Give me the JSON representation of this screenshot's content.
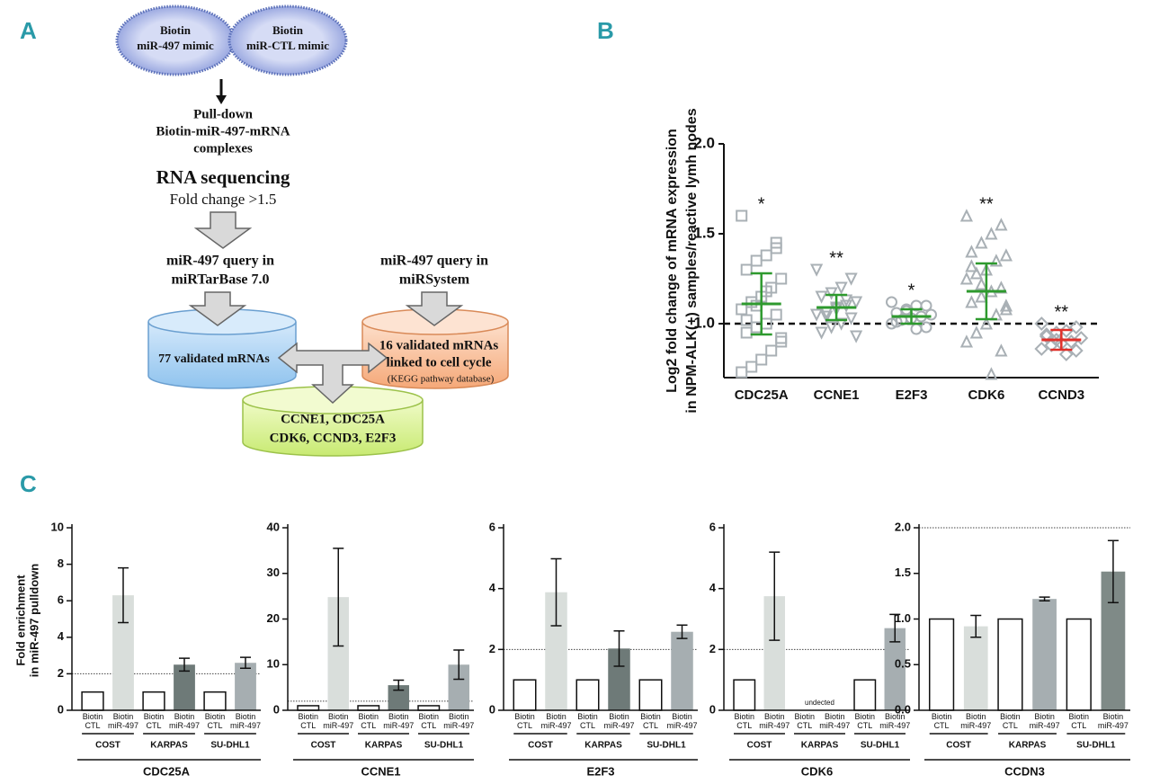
{
  "panel_labels": [
    "A",
    "B",
    "C"
  ],
  "diagram": {
    "mimics": [
      [
        "Biotin",
        "miR-497 mimic"
      ],
      [
        "Biotin",
        "miR-CTL mimic"
      ]
    ],
    "pulldown": [
      "Pull-down",
      "Biotin-miR-497-mRNA",
      "complexes"
    ],
    "sequencing": {
      "title": "RNA sequencing",
      "criterion": "Fold change >1.5"
    },
    "queries": [
      [
        "miR-497 query in",
        "miRTarBase  7.0"
      ],
      [
        "miR-497 query in",
        "miRSystem"
      ]
    ],
    "databases": [
      {
        "lines": [
          "77 validated mRNAs"
        ]
      },
      {
        "lines": [
          "16 validated mRNAs",
          "linked to cell cycle"
        ],
        "note": "(KEGG pathway database)"
      }
    ],
    "result": [
      "CCNE1, CDC25A",
      "CDK6,  CCND3, E2F3"
    ]
  },
  "chart_data": [
    {
      "type": "dot",
      "y_title": [
        "Log2 fold change of mRNA expression",
        "in NPM-ALK(+) samples/reactive lymh nodes"
      ],
      "categories": [
        "CDC25A",
        "CCNE1",
        "E2F3",
        "CDK6",
        "CCND3"
      ],
      "ylim": [
        0.7,
        2.0
      ],
      "yticks": [
        {
          "value": 1,
          "label": "1.0"
        },
        1.5,
        {
          "value": 2,
          "label": "2.0"
        }
      ],
      "ref_line": 1,
      "point_color": "#a9b0b5",
      "groups": [
        {
          "marker": "square",
          "color": "#2e9a2e",
          "mean": 1.11,
          "sd": 0.17,
          "annotation": "*",
          "values": [
            1.6,
            1.45,
            1.38,
            1.35,
            1.3,
            1.25,
            1.2,
            1.15,
            1.12,
            1.08,
            1.05,
            1.0,
            0.98,
            0.95,
            0.9,
            0.85,
            0.8,
            0.76,
            0.73,
            1.42,
            1.18,
            1.1,
            1.02,
            0.92
          ]
        },
        {
          "marker": "triangle-down",
          "color": "#2e9a2e",
          "mean": 1.09,
          "sd": 0.07,
          "annotation": "**",
          "values": [
            1.3,
            1.25,
            1.2,
            1.17,
            1.15,
            1.12,
            1.1,
            1.08,
            1.06,
            1.05,
            1.03,
            1.0,
            0.98,
            0.95,
            0.93,
            1.13,
            1.09,
            1.04
          ]
        },
        {
          "marker": "circle",
          "color": "#2e9a2e",
          "mean": 1.04,
          "sd": 0.04,
          "annotation": "*",
          "values": [
            1.12,
            1.1,
            1.1,
            1.08,
            1.06,
            1.05,
            1.04,
            1.03,
            1.02,
            1.0,
            0.98,
            0.97,
            1.07,
            1.01
          ]
        },
        {
          "marker": "triangle",
          "color": "#2e9a2e",
          "mean": 1.18,
          "sd": 0.155,
          "annotation": "**",
          "values": [
            1.6,
            1.55,
            1.5,
            1.45,
            1.4,
            1.38,
            1.35,
            1.3,
            1.28,
            1.25,
            1.2,
            1.18,
            1.15,
            1.12,
            1.1,
            1.05,
            1.0,
            0.95,
            0.9,
            0.85,
            0.72,
            1.22,
            1.32,
            1.08
          ]
        },
        {
          "marker": "diamond",
          "color": "#e0302a",
          "mean": 0.91,
          "sd": 0.055,
          "annotation": "**",
          "values": [
            1.0,
            0.98,
            0.96,
            0.95,
            0.93,
            0.92,
            0.9,
            0.89,
            0.88,
            0.86,
            0.85,
            0.83,
            0.91,
            0.94
          ]
        }
      ]
    },
    {
      "type": "bar",
      "title": "CDC25A",
      "y_title": [
        "Fold enrichment",
        "in miR-497 pulldown"
      ],
      "categories": [
        "Biotin CTL",
        "Biotin miR-497",
        "Biotin CTL",
        "Biotin miR-497",
        "Biotin CTL",
        "Biotin miR-497"
      ],
      "group_labels": [
        "COST",
        "KARPAS",
        "SU-DHL1"
      ],
      "values": [
        1,
        6.3,
        1,
        2.5,
        1,
        2.6
      ],
      "errors": [
        null,
        1.5,
        null,
        0.35,
        null,
        0.3
      ],
      "colors": [
        "#ffffff",
        "#d9dedb",
        "#ffffff",
        "#6e7a78",
        "#ffffff",
        "#a6aeb1"
      ],
      "ylim": [
        0,
        10
      ],
      "yticks": [
        0,
        2,
        4,
        6,
        8,
        10
      ],
      "ref_line": 2
    },
    {
      "type": "bar",
      "title": "CCNE1",
      "categories": [
        "Biotin CTL",
        "Biotin miR-497",
        "Biotin CTL",
        "Biotin miR-497",
        "Biotin CTL",
        "Biotin miR-497"
      ],
      "group_labels": [
        "COST",
        "KARPAS",
        "SU-DHL1"
      ],
      "values": [
        1,
        24.8,
        1,
        5.5,
        1,
        10
      ],
      "errors": [
        null,
        10.7,
        null,
        1.1,
        null,
        3.2
      ],
      "colors": [
        "#ffffff",
        "#d9dedb",
        "#ffffff",
        "#6e7a78",
        "#ffffff",
        "#a6aeb1"
      ],
      "ylim": [
        0,
        40
      ],
      "yticks": [
        0,
        10,
        20,
        30,
        40
      ],
      "ref_line": 2
    },
    {
      "type": "bar",
      "title": "E2F3",
      "categories": [
        "Biotin CTL",
        "Biotin miR-497",
        "Biotin CTL",
        "Biotin miR-497",
        "Biotin CTL",
        "Biotin miR-497"
      ],
      "group_labels": [
        "COST",
        "KARPAS",
        "SU-DHL1"
      ],
      "values": [
        1,
        3.88,
        1,
        2.03,
        1,
        2.58
      ],
      "errors": [
        null,
        1.1,
        null,
        0.58,
        null,
        0.22
      ],
      "colors": [
        "#ffffff",
        "#d9dedb",
        "#ffffff",
        "#6e7a78",
        "#ffffff",
        "#a6aeb1"
      ],
      "ylim": [
        0,
        6
      ],
      "yticks": [
        0,
        2,
        4,
        6
      ],
      "ref_line": 2
    },
    {
      "type": "bar",
      "title": "CDK6",
      "categories": [
        "Biotin CTL",
        "Biotin miR-497",
        "Biotin CTL",
        "Biotin miR-497",
        "Biotin CTL",
        "Biotin miR-497"
      ],
      "group_labels": [
        "COST",
        "KARPAS",
        "SU-DHL1"
      ],
      "values": [
        1,
        3.75,
        null,
        null,
        1,
        2.7
      ],
      "errors": [
        null,
        1.45,
        null,
        null,
        null,
        0.45
      ],
      "missing_label": "undected",
      "colors": [
        "#ffffff",
        "#d9dedb",
        "#ffffff",
        "#6e7a78",
        "#ffffff",
        "#a6aeb1"
      ],
      "ylim": [
        0,
        6
      ],
      "yticks": [
        0,
        2,
        4,
        6
      ],
      "ref_line": 2
    },
    {
      "type": "bar",
      "title": "CCDN3",
      "categories": [
        "Biotin CTL",
        "Biotin miR-497",
        "Biotin CTL",
        "Biotin miR-497",
        "Biotin CTL",
        "Biotin miR-497"
      ],
      "group_labels": [
        "COST",
        "KARPAS",
        "SU-DHL1"
      ],
      "values": [
        1,
        0.92,
        1,
        1.22,
        1,
        1.52
      ],
      "errors": [
        null,
        0.12,
        null,
        0.02,
        null,
        0.34
      ],
      "colors": [
        "#ffffff",
        "#d9dedb",
        "#ffffff",
        "#a6aeb1",
        "#ffffff",
        "#7f8a87"
      ],
      "ylim": [
        0,
        2
      ],
      "yticks": [
        {
          "value": 0,
          "label": "0.0"
        },
        0.5,
        {
          "value": 1,
          "label": "1.0"
        },
        1.5,
        {
          "value": 2,
          "label": "2.0"
        }
      ],
      "ref_line": 2
    }
  ]
}
